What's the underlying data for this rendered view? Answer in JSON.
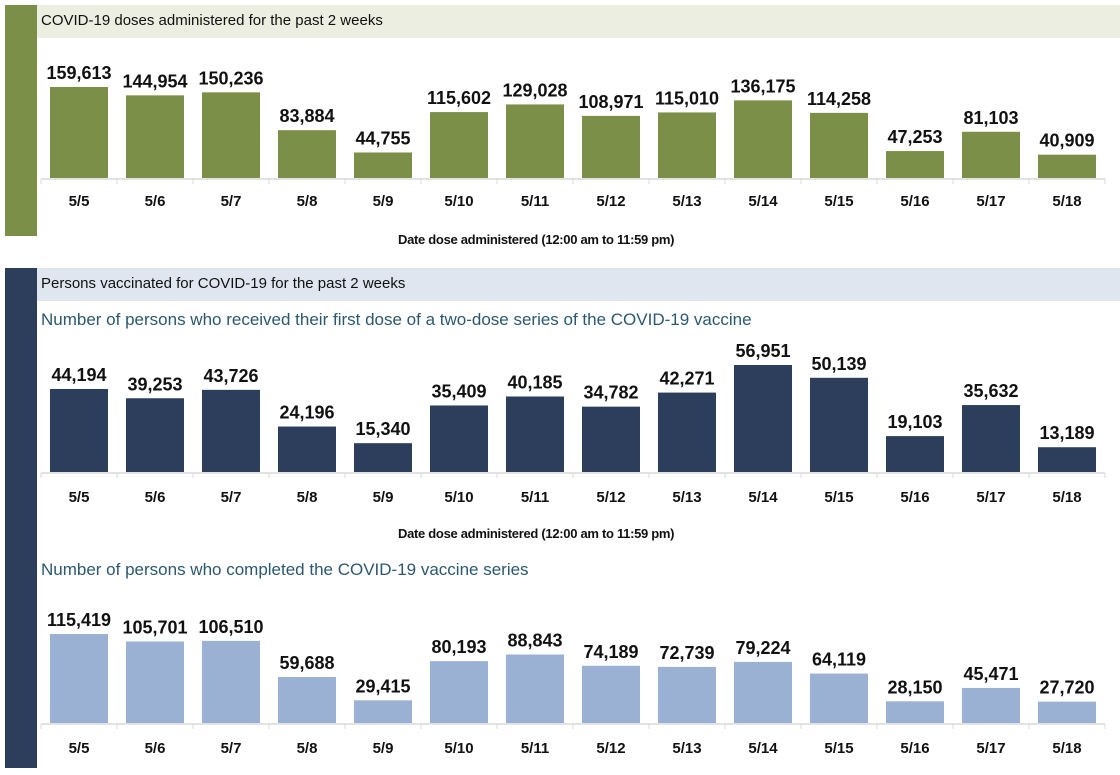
{
  "sections": {
    "doses": {
      "title": "COVID-19 doses administered for the past 2 weeks",
      "accent": "#7b8f48",
      "band_color": "#ebeee0"
    },
    "persons": {
      "title": "Persons vaccinated for COVID-19 for the past 2 weeks",
      "accent": "#2c3e5c",
      "band_color": "#dfe6ef"
    }
  },
  "chart_data": [
    {
      "type": "bar",
      "title": "COVID-19 doses administered for the past 2 weeks",
      "xlabel": "Date dose administered (12:00 am to 11:59 pm)",
      "ylabel": "",
      "color": "#7b8f48",
      "grid": false,
      "categories": [
        "5/5",
        "5/6",
        "5/7",
        "5/8",
        "5/9",
        "5/10",
        "5/11",
        "5/12",
        "5/13",
        "5/14",
        "5/15",
        "5/16",
        "5/17",
        "5/18"
      ],
      "values": [
        159613,
        144954,
        150236,
        83884,
        44755,
        115602,
        129028,
        108971,
        115010,
        136175,
        114258,
        47253,
        81103,
        40909
      ],
      "labels": [
        "159,613",
        "144,954",
        "150,236",
        "83,884",
        "44,755",
        "115,602",
        "129,028",
        "108,971",
        "115,010",
        "136,175",
        "114,258",
        "47,253",
        "81,103",
        "40,909"
      ]
    },
    {
      "type": "bar",
      "title": "Number of persons who received their first dose of a two-dose series of the COVID-19 vaccine",
      "xlabel": "Date dose administered (12:00 am to 11:59 pm)",
      "ylabel": "",
      "color": "#2c3e5c",
      "grid": false,
      "categories": [
        "5/5",
        "5/6",
        "5/7",
        "5/8",
        "5/9",
        "5/10",
        "5/11",
        "5/12",
        "5/13",
        "5/14",
        "5/15",
        "5/16",
        "5/17",
        "5/18"
      ],
      "values": [
        44194,
        39253,
        43726,
        24196,
        15340,
        35409,
        40185,
        34782,
        42271,
        56951,
        50139,
        19103,
        35632,
        13189
      ],
      "labels": [
        "44,194",
        "39,253",
        "43,726",
        "24,196",
        "15,340",
        "35,409",
        "40,185",
        "34,782",
        "42,271",
        "56,951",
        "50,139",
        "19,103",
        "35,632",
        "13,189"
      ]
    },
    {
      "type": "bar",
      "title": "Number of persons who completed the COVID-19 vaccine series",
      "xlabel": "",
      "ylabel": "",
      "color": "#9ab1d4",
      "grid": false,
      "categories": [
        "5/5",
        "5/6",
        "5/7",
        "5/8",
        "5/9",
        "5/10",
        "5/11",
        "5/12",
        "5/13",
        "5/14",
        "5/15",
        "5/16",
        "5/17",
        "5/18"
      ],
      "values": [
        115419,
        105701,
        106510,
        59688,
        29415,
        80193,
        88843,
        74189,
        72739,
        79224,
        64119,
        28150,
        45471,
        27720
      ],
      "labels": [
        "115,419",
        "105,701",
        "106,510",
        "59,688",
        "29,415",
        "80,193",
        "88,843",
        "74,189",
        "72,739",
        "79,224",
        "64,119",
        "28,150",
        "45,471",
        "27,720"
      ]
    }
  ]
}
